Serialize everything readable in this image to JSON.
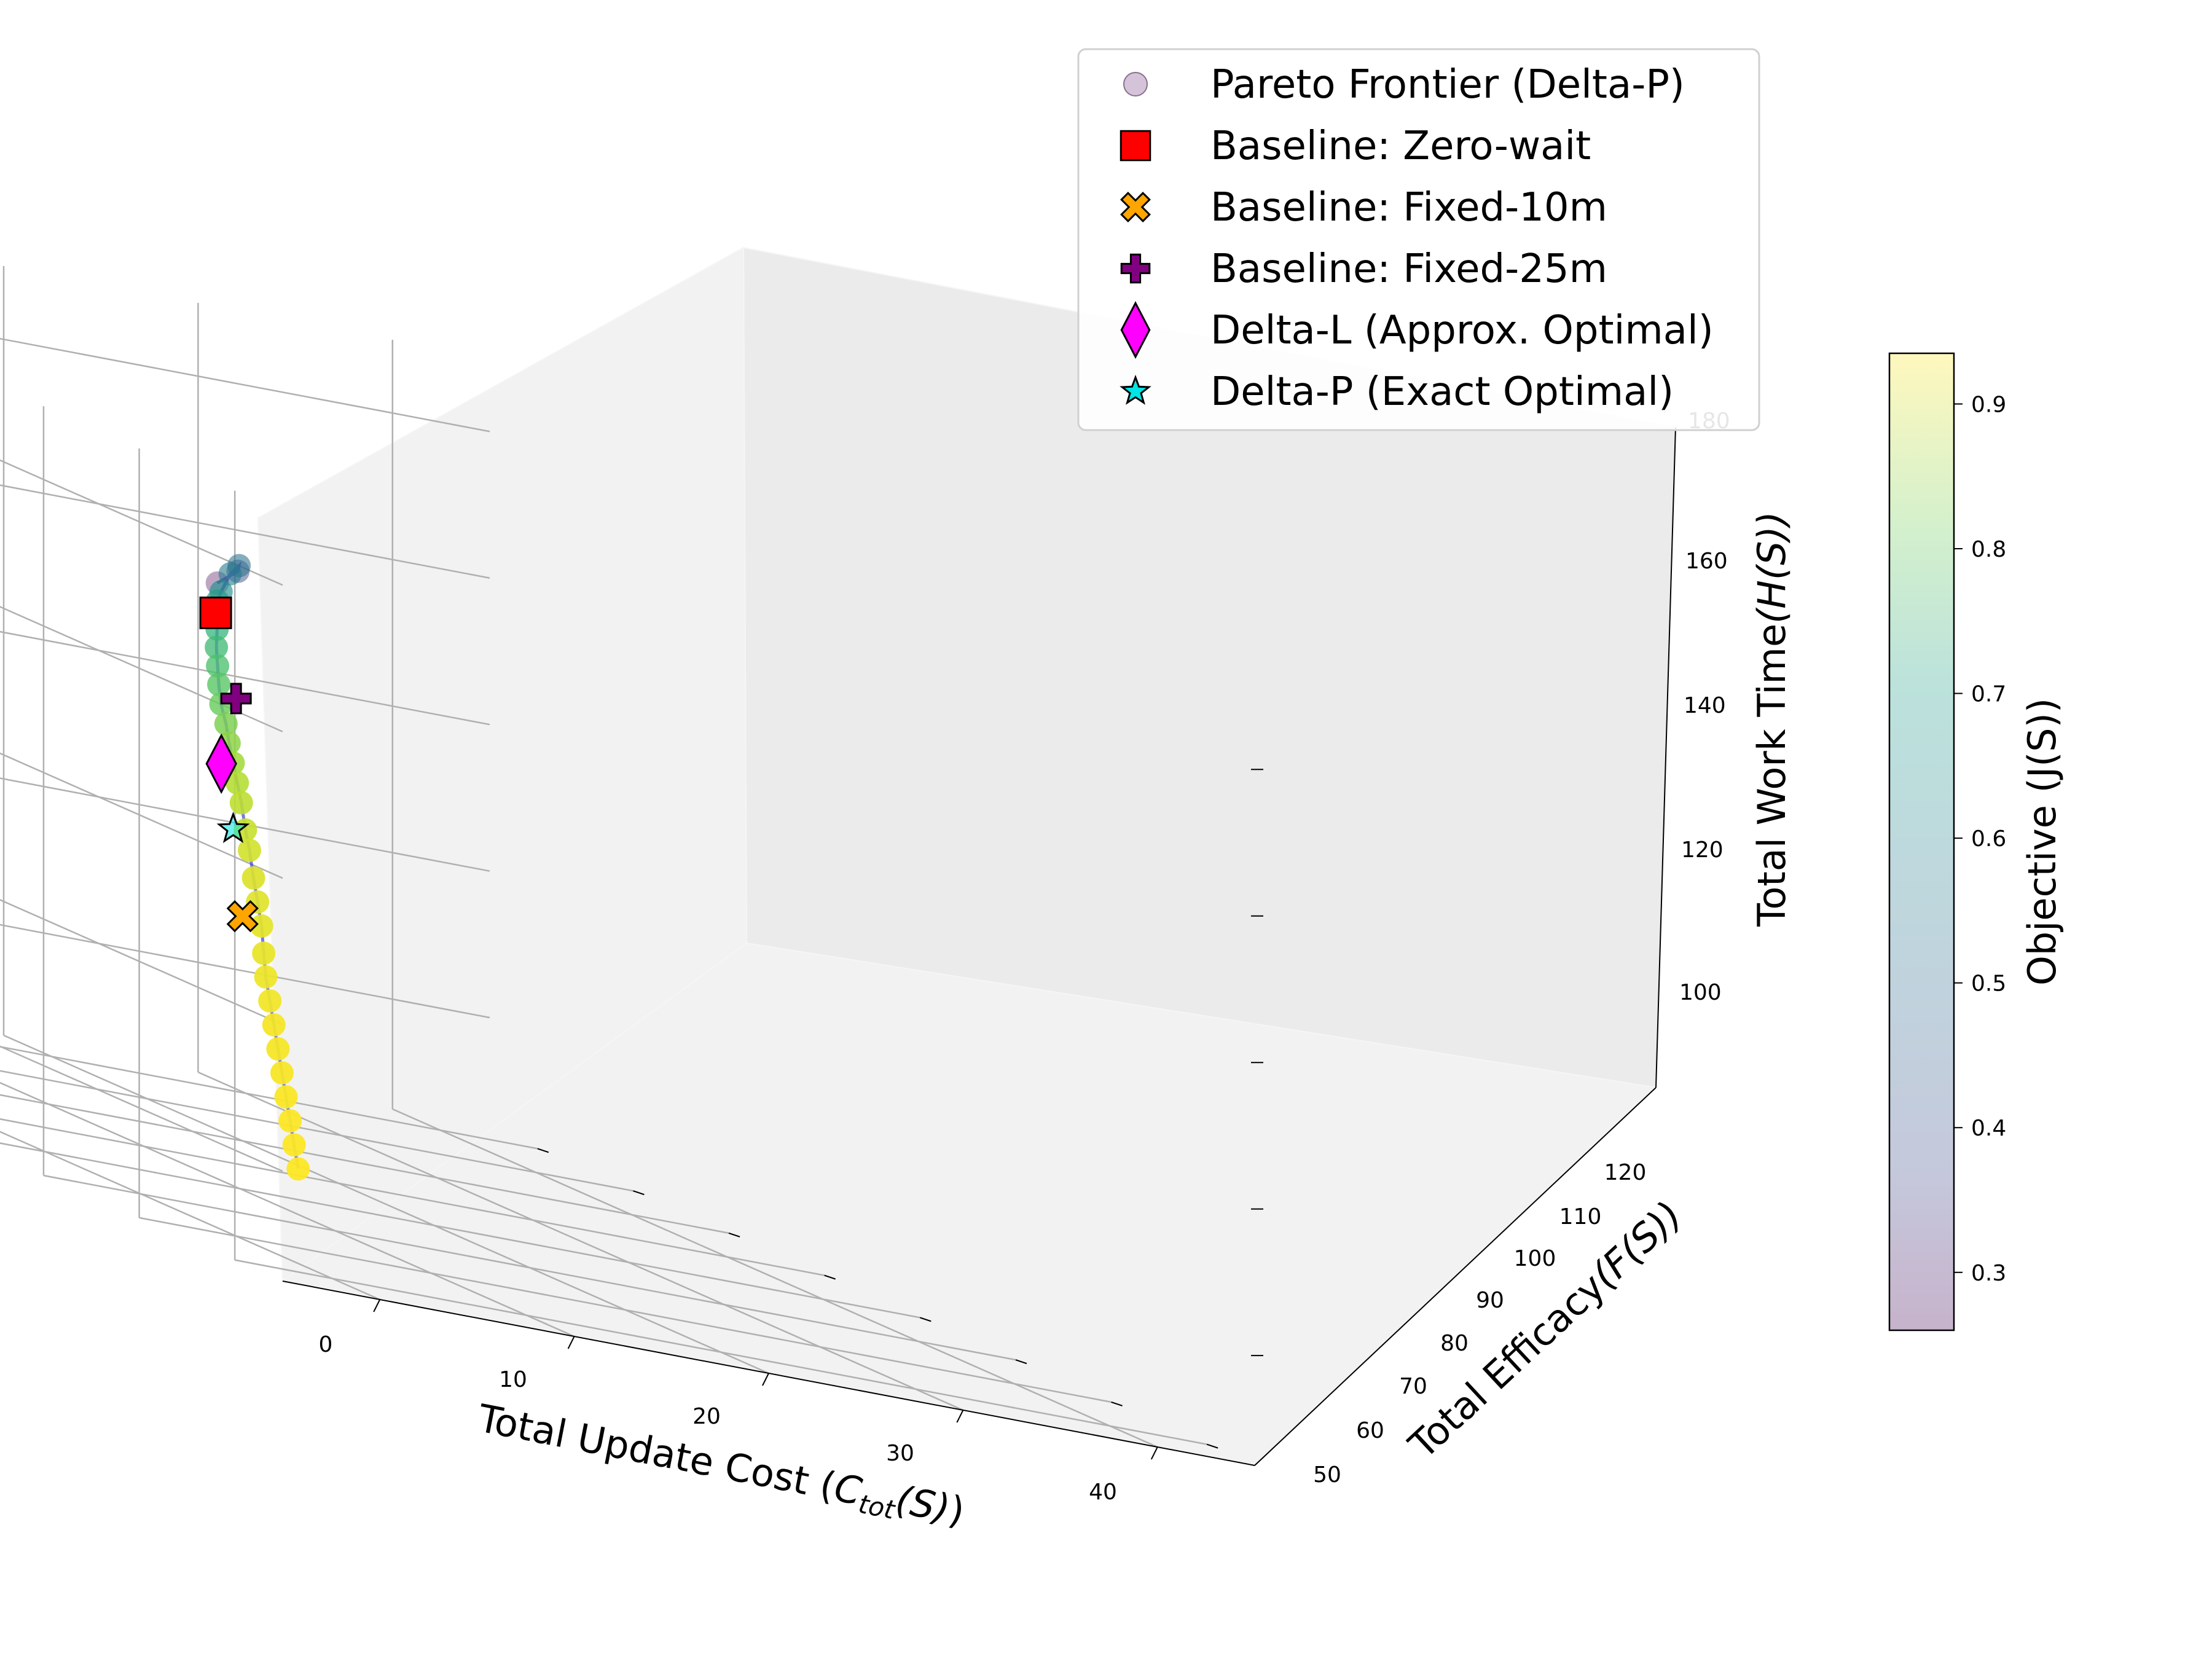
{
  "chart_data": {
    "type": "scatter",
    "projection": "3d",
    "xlabel": "Total Update Cost",
    "xlabel_math": {
      "base": "C",
      "sub": "tot",
      "arg": "(S)"
    },
    "ylabel": "Total Efficacy",
    "ylabel_math": "(F(S))",
    "zlabel": "Total Work Time",
    "zlabel_math": "(H(S))",
    "x_ticks": [
      "0",
      "10",
      "20",
      "30",
      "40"
    ],
    "y_ticks": [
      "50",
      "60",
      "70",
      "80",
      "90",
      "100",
      "110",
      "120"
    ],
    "z_ticks": [
      "100",
      "120",
      "140",
      "160",
      "180"
    ],
    "colorbar": {
      "label": "Objective (J(S))",
      "ticks": [
        "0.3",
        "0.4",
        "0.5",
        "0.6",
        "0.7",
        "0.8",
        "0.9"
      ],
      "range": [
        0.26,
        0.935
      ],
      "colormap": "viridis",
      "alpha": 0.3
    },
    "legend": [
      {
        "label": "Pareto Frontier (Delta-P)",
        "marker": "circle",
        "color": "#b393b9"
      },
      {
        "label": "Baseline: Zero-wait",
        "marker": "square",
        "color": "#ff0000"
      },
      {
        "label": "Baseline: Fixed-10m",
        "marker": "x",
        "color": "#ffa500"
      },
      {
        "label": "Baseline: Fixed-25m",
        "marker": "plus",
        "color": "#800080"
      },
      {
        "label": "Delta-L (Approx. Optimal)",
        "marker": "diamond",
        "color": "#ff00ff"
      },
      {
        "label": "Delta-P (Exact Optimal)",
        "marker": "star",
        "color": "#00e5e5"
      }
    ],
    "frontier": {
      "name": "Pareto Frontier (Delta-P)",
      "x": [
        0,
        5,
        8.5,
        10.5,
        12,
        12.8,
        13.8,
        14.5,
        15.2,
        16,
        16.8,
        17.5,
        18.4,
        19.2,
        20,
        20.8,
        21.6,
        22.4,
        23.1,
        23.8,
        24.5,
        25.2,
        25.8,
        26.4,
        27.1,
        27.8,
        28.5,
        29.2,
        29.9,
        30.6,
        31.3,
        32
      ],
      "y": [
        62,
        70,
        77,
        82,
        86,
        88,
        90,
        91.5,
        93,
        94.5,
        96,
        97.2,
        98.5,
        99.8,
        101,
        102.2,
        103.4,
        104.6,
        105.6,
        106.6,
        107.6,
        108.6,
        109.6,
        110.6,
        111.6,
        112.6,
        113.6,
        114.6,
        115.6,
        116.6,
        117.6,
        118.6
      ],
      "z": [
        173,
        172.5,
        171,
        168,
        164,
        162,
        160,
        157,
        154,
        151,
        148,
        145,
        142,
        139,
        136,
        133,
        130,
        126,
        123,
        119,
        115.5,
        112,
        108,
        104.5,
        101,
        97.5,
        94,
        90.5,
        87,
        83.5,
        80,
        76.5
      ],
      "objective": [
        0.26,
        0.42,
        0.52,
        0.54,
        0.6,
        0.63,
        0.68,
        0.7,
        0.72,
        0.74,
        0.76,
        0.78,
        0.8,
        0.82,
        0.84,
        0.86,
        0.87,
        0.88,
        0.89,
        0.9,
        0.905,
        0.91,
        0.915,
        0.92,
        0.923,
        0.926,
        0.928,
        0.93,
        0.932,
        0.934,
        0.934,
        0.935
      ]
    },
    "markers": [
      {
        "name": "Baseline: Zero-wait",
        "marker": "square",
        "color": "#ff0000",
        "x": 13.2,
        "y": 89,
        "z": 160
      },
      {
        "name": "Baseline: Fixed-10m",
        "marker": "x",
        "color": "#ffa500",
        "x": 19.5,
        "y": 99,
        "z": 116
      },
      {
        "name": "Baseline: Fixed-25m",
        "marker": "plus",
        "color": "#800080",
        "x": 14,
        "y": 88.5,
        "z": 149
      },
      {
        "name": "Delta-L (Approx. Optimal)",
        "marker": "diamond",
        "color": "#ff00ff",
        "x": 18.8,
        "y": 99.8,
        "z": 136
      },
      {
        "name": "Delta-P (Exact Optimal)",
        "marker": "star",
        "color": "#00e5e5",
        "x": 20,
        "y": 101,
        "z": 127
      }
    ]
  }
}
